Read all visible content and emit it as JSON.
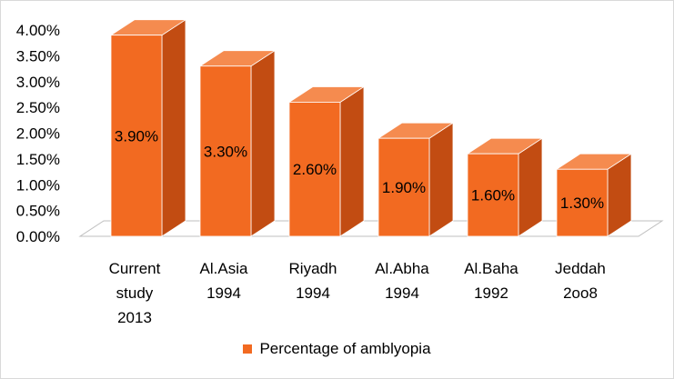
{
  "chart_data": {
    "type": "bar",
    "style": "3d-column",
    "categories": [
      [
        "Current",
        "study",
        "2013"
      ],
      [
        "Al.Asia",
        "1994"
      ],
      [
        "Riyadh",
        "1994"
      ],
      [
        "Al.Abha",
        "1994"
      ],
      [
        "Al.Baha",
        "1992"
      ],
      [
        "Jeddah",
        "2oo8"
      ]
    ],
    "series": [
      {
        "name": "Percentage of amblyopia",
        "values": [
          3.9,
          3.3,
          2.6,
          1.9,
          1.6,
          1.3
        ],
        "labels": [
          "3.90%",
          "3.30%",
          "2.60%",
          "1.90%",
          "1.60%",
          "1.30%"
        ]
      }
    ],
    "y_ticks": [
      "0.00%",
      "0.50%",
      "1.00%",
      "1.50%",
      "2.00%",
      "2.50%",
      "3.00%",
      "3.50%",
      "4.00%"
    ],
    "ylim": [
      0,
      4
    ],
    "grid": false,
    "legend_position": "bottom",
    "colors": {
      "bar_front": "#f26a21",
      "bar_top": "#f58b4f",
      "bar_side": "#c24c12",
      "floor": "#ffffff",
      "floor_edge": "#bfbfbf"
    }
  }
}
